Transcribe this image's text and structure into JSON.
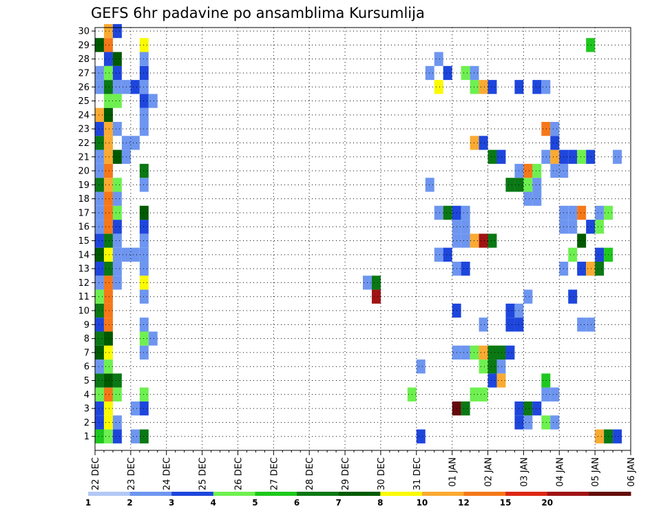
{
  "title": "GEFS 6hr padavine po ansamblima Kursumlija",
  "chart_data": {
    "type": "heatmap",
    "title": "GEFS 6hr padavine po ansamblima Kursumlija",
    "xlabel": "",
    "ylabel": "",
    "x_ticks": [
      "22 DEC",
      "23 DEC",
      "24 DEC",
      "25 DEC",
      "26 DEC",
      "27 DEC",
      "28 DEC",
      "29 DEC",
      "30 DEC",
      "31 DEC",
      "01 JAN",
      "02 JAN",
      "03 JAN",
      "04 JAN",
      "05 JAN",
      "06 JAN"
    ],
    "y_ticks": [
      1,
      2,
      3,
      4,
      5,
      6,
      7,
      8,
      9,
      10,
      11,
      12,
      13,
      14,
      15,
      16,
      17,
      18,
      19,
      20,
      21,
      22,
      23,
      24,
      25,
      26,
      27,
      28,
      29,
      30
    ],
    "grid": true,
    "colorbar": {
      "labels": [
        "1",
        "2",
        "3",
        "4",
        "5",
        "6",
        "7",
        "8",
        "10",
        "12",
        "15",
        "20"
      ],
      "colors": [
        "#b4c8f5",
        "#6e96f0",
        "#1e46dc",
        "#6ef050",
        "#1ec81e",
        "#0a7814",
        "#005a00",
        "#fafa00",
        "#faaa32",
        "#f57819",
        "#dc2814",
        "#a01414",
        "#640a0a"
      ]
    },
    "cells": [
      [
        0,
        1,
        4
      ],
      [
        0,
        2,
        2
      ],
      [
        0,
        3,
        2
      ],
      [
        0,
        4,
        3
      ],
      [
        0,
        5,
        5
      ],
      [
        0,
        6,
        1
      ],
      [
        0,
        7,
        6
      ],
      [
        0,
        8,
        5
      ],
      [
        0,
        9,
        2
      ],
      [
        0,
        10,
        5
      ],
      [
        0,
        11,
        3
      ],
      [
        0,
        12,
        1
      ],
      [
        0,
        13,
        2
      ],
      [
        0,
        14,
        6
      ],
      [
        0,
        15,
        2
      ],
      [
        0,
        16,
        1
      ],
      [
        0,
        17,
        1
      ],
      [
        0,
        18,
        1
      ],
      [
        0,
        19,
        5
      ],
      [
        0,
        20,
        1
      ],
      [
        0,
        21,
        1
      ],
      [
        0,
        22,
        5
      ],
      [
        0,
        23,
        2
      ],
      [
        0,
        24,
        8
      ],
      [
        0,
        26,
        1
      ],
      [
        0,
        27,
        1
      ],
      [
        0,
        29,
        6
      ],
      [
        1,
        1,
        3
      ],
      [
        1,
        2,
        7
      ],
      [
        1,
        3,
        7
      ],
      [
        1,
        4,
        9
      ],
      [
        1,
        5,
        6
      ],
      [
        1,
        6,
        3
      ],
      [
        1,
        7,
        7
      ],
      [
        1,
        8,
        6
      ],
      [
        1,
        9,
        9
      ],
      [
        1,
        10,
        9
      ],
      [
        1,
        11,
        9
      ],
      [
        1,
        12,
        9
      ],
      [
        1,
        13,
        5
      ],
      [
        1,
        14,
        7
      ],
      [
        1,
        15,
        5
      ],
      [
        1,
        16,
        9
      ],
      [
        1,
        17,
        9
      ],
      [
        1,
        18,
        9
      ],
      [
        1,
        19,
        8
      ],
      [
        1,
        20,
        9
      ],
      [
        1,
        21,
        8
      ],
      [
        1,
        22,
        8
      ],
      [
        1,
        23,
        8
      ],
      [
        1,
        24,
        6
      ],
      [
        1,
        25,
        3
      ],
      [
        1,
        26,
        5
      ],
      [
        1,
        27,
        3
      ],
      [
        1,
        28,
        2
      ],
      [
        1,
        29,
        9
      ],
      [
        1,
        30,
        8
      ],
      [
        2,
        1,
        2
      ],
      [
        2,
        2,
        1
      ],
      [
        2,
        4,
        3
      ],
      [
        2,
        5,
        5
      ],
      [
        2,
        12,
        1
      ],
      [
        2,
        13,
        1
      ],
      [
        2,
        14,
        1
      ],
      [
        2,
        15,
        1
      ],
      [
        2,
        16,
        2
      ],
      [
        2,
        17,
        3
      ],
      [
        2,
        18,
        1
      ],
      [
        2,
        19,
        3
      ],
      [
        2,
        21,
        6
      ],
      [
        2,
        23,
        1
      ],
      [
        2,
        25,
        3
      ],
      [
        2,
        26,
        1
      ],
      [
        2,
        27,
        2
      ],
      [
        2,
        28,
        6
      ],
      [
        2,
        30,
        2
      ],
      [
        3,
        14,
        1
      ],
      [
        3,
        21,
        1
      ],
      [
        3,
        22,
        1
      ],
      [
        3,
        26,
        1
      ],
      [
        4,
        1,
        1
      ],
      [
        4,
        3,
        1
      ],
      [
        4,
        14,
        1
      ],
      [
        4,
        22,
        1
      ],
      [
        4,
        26,
        2
      ],
      [
        5,
        1,
        5
      ],
      [
        5,
        3,
        2
      ],
      [
        5,
        4,
        3
      ],
      [
        5,
        7,
        1
      ],
      [
        5,
        8,
        3
      ],
      [
        5,
        9,
        1
      ],
      [
        5,
        11,
        1
      ],
      [
        5,
        12,
        7
      ],
      [
        5,
        13,
        1
      ],
      [
        5,
        14,
        1
      ],
      [
        5,
        15,
        1
      ],
      [
        5,
        16,
        2
      ],
      [
        5,
        17,
        6
      ],
      [
        5,
        19,
        1
      ],
      [
        5,
        20,
        5
      ],
      [
        5,
        23,
        1
      ],
      [
        5,
        24,
        1
      ],
      [
        5,
        25,
        2
      ],
      [
        5,
        26,
        1
      ],
      [
        5,
        27,
        2
      ],
      [
        5,
        28,
        1
      ],
      [
        5,
        29,
        7
      ],
      [
        6,
        8,
        1
      ],
      [
        6,
        25,
        1
      ],
      [
        30,
        12,
        1
      ],
      [
        31,
        11,
        11
      ],
      [
        31,
        12,
        5
      ],
      [
        35,
        4,
        3
      ],
      [
        36,
        1,
        2
      ],
      [
        36,
        6,
        1
      ],
      [
        37,
        19,
        1
      ],
      [
        37,
        27,
        1
      ],
      [
        38,
        14,
        1
      ],
      [
        38,
        17,
        1
      ],
      [
        38,
        26,
        7
      ],
      [
        38,
        28,
        1
      ],
      [
        39,
        14,
        2
      ],
      [
        39,
        17,
        5
      ],
      [
        39,
        27,
        2
      ],
      [
        40,
        7,
        1
      ],
      [
        40,
        10,
        2
      ],
      [
        40,
        13,
        1
      ],
      [
        40,
        15,
        1
      ],
      [
        40,
        16,
        1
      ],
      [
        40,
        17,
        2
      ],
      [
        40,
        3,
        12
      ],
      [
        41,
        3,
        5
      ],
      [
        41,
        7,
        1
      ],
      [
        41,
        13,
        2
      ],
      [
        41,
        15,
        1
      ],
      [
        41,
        16,
        1
      ],
      [
        41,
        17,
        1
      ],
      [
        41,
        27,
        3
      ],
      [
        42,
        4,
        3
      ],
      [
        42,
        7,
        3
      ],
      [
        42,
        15,
        8
      ],
      [
        42,
        22,
        8
      ],
      [
        42,
        26,
        3
      ],
      [
        42,
        27,
        1
      ],
      [
        43,
        4,
        3
      ],
      [
        43,
        6,
        3
      ],
      [
        43,
        7,
        8
      ],
      [
        43,
        9,
        1
      ],
      [
        43,
        15,
        11
      ],
      [
        43,
        22,
        2
      ],
      [
        43,
        26,
        8
      ],
      [
        44,
        5,
        2
      ],
      [
        44,
        6,
        5
      ],
      [
        44,
        7,
        5
      ],
      [
        44,
        15,
        5
      ],
      [
        44,
        21,
        5
      ],
      [
        44,
        26,
        2
      ],
      [
        45,
        5,
        8
      ],
      [
        45,
        6,
        1
      ],
      [
        45,
        7,
        5
      ],
      [
        45,
        21,
        2
      ],
      [
        46,
        7,
        2
      ],
      [
        46,
        10,
        2
      ],
      [
        46,
        9,
        2
      ],
      [
        46,
        19,
        5
      ],
      [
        47,
        2,
        2
      ],
      [
        47,
        3,
        2
      ],
      [
        47,
        10,
        1
      ],
      [
        47,
        9,
        2
      ],
      [
        47,
        19,
        5
      ],
      [
        47,
        20,
        1
      ],
      [
        47,
        26,
        2
      ],
      [
        48,
        2,
        1
      ],
      [
        48,
        3,
        5
      ],
      [
        48,
        11,
        1
      ],
      [
        48,
        18,
        1
      ],
      [
        48,
        19,
        3
      ],
      [
        48,
        20,
        9
      ],
      [
        49,
        3,
        2
      ],
      [
        49,
        18,
        1
      ],
      [
        49,
        19,
        1
      ],
      [
        49,
        20,
        3
      ],
      [
        49,
        26,
        2
      ],
      [
        50,
        2,
        3
      ],
      [
        50,
        4,
        1
      ],
      [
        50,
        5,
        4
      ],
      [
        50,
        21,
        1
      ],
      [
        50,
        23,
        9
      ],
      [
        50,
        26,
        1
      ],
      [
        51,
        2,
        1
      ],
      [
        51,
        4,
        1
      ],
      [
        51,
        21,
        8
      ],
      [
        51,
        22,
        2
      ],
      [
        51,
        23,
        1
      ],
      [
        51,
        20,
        1
      ],
      [
        52,
        13,
        1
      ],
      [
        52,
        17,
        1
      ],
      [
        52,
        16,
        1
      ],
      [
        52,
        20,
        1
      ],
      [
        52,
        21,
        2
      ],
      [
        53,
        11,
        2
      ],
      [
        53,
        14,
        3
      ],
      [
        53,
        16,
        1
      ],
      [
        53,
        17,
        1
      ],
      [
        53,
        21,
        2
      ],
      [
        54,
        9,
        1
      ],
      [
        54,
        13,
        2
      ],
      [
        54,
        15,
        6
      ],
      [
        54,
        17,
        9
      ],
      [
        54,
        21,
        3
      ],
      [
        55,
        9,
        1
      ],
      [
        55,
        13,
        8
      ],
      [
        55,
        16,
        2
      ],
      [
        55,
        21,
        2
      ],
      [
        55,
        29,
        4
      ],
      [
        56,
        1,
        8
      ],
      [
        56,
        13,
        5
      ],
      [
        56,
        14,
        2
      ],
      [
        56,
        16,
        3
      ],
      [
        56,
        17,
        1
      ],
      [
        57,
        1,
        5
      ],
      [
        57,
        14,
        4
      ],
      [
        57,
        17,
        3
      ],
      [
        58,
        1,
        2
      ],
      [
        58,
        21,
        1
      ]
    ]
  }
}
